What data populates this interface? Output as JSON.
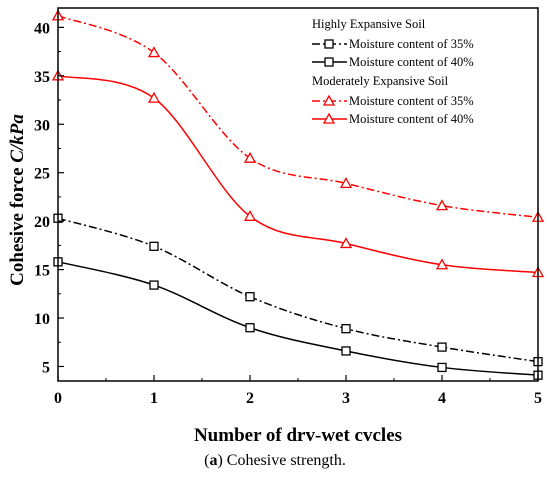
{
  "caption": {
    "prefix": "(",
    "letter": "a",
    "suffix": ") Cohesive strength."
  },
  "chart_data": {
    "type": "line",
    "xlabel": "Number of drv-wet cvcles",
    "ylabel": "Cohesive force C/kPa",
    "ylabel_plain": "Cohesive force ",
    "ylabel_italic": "C/kPa",
    "xlim": [
      0,
      5
    ],
    "ylim": [
      3.5,
      42
    ],
    "xticks": [
      0,
      1,
      2,
      3,
      4,
      5
    ],
    "yticks": [
      5,
      10,
      15,
      20,
      25,
      30,
      35,
      40
    ],
    "grid": false,
    "legend_placement": "top-right",
    "x": [
      0,
      1,
      2,
      3,
      4,
      5
    ],
    "groups": [
      {
        "title": "Highly Expansive Soil",
        "series": [
          {
            "name": "Moisture content of 35%",
            "color": "#000000",
            "marker": "square",
            "dash": "dashdot",
            "values": [
              20.3,
              17.4,
              12.2,
              8.9,
              7.0,
              5.5
            ]
          },
          {
            "name": "Moisture content of 40%",
            "color": "#000000",
            "marker": "square",
            "dash": "solid",
            "values": [
              15.8,
              13.4,
              9.0,
              6.6,
              4.9,
              4.1
            ]
          }
        ]
      },
      {
        "title": "Moderately Expansive Soil",
        "series": [
          {
            "name": "Moisture content of 35%",
            "color": "#ff0000",
            "marker": "triangle",
            "dash": "dashdot",
            "values": [
              41.2,
              37.4,
              26.5,
              23.9,
              21.6,
              20.4
            ]
          },
          {
            "name": "Moisture content of 40%",
            "color": "#ff0000",
            "marker": "triangle",
            "dash": "solid",
            "values": [
              35.0,
              32.7,
              20.5,
              17.7,
              15.5,
              14.7
            ]
          }
        ]
      }
    ]
  }
}
